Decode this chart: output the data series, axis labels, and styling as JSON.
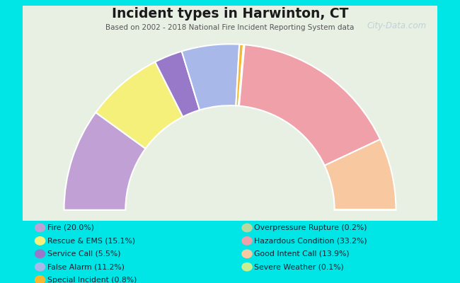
{
  "title": "Incident types in Harwinton, CT",
  "subtitle": "Based on 2002 - 2018 National Fire Incident Reporting System data",
  "background_outer": "#00e5e5",
  "background_inner_tl": "#ddeedd",
  "background_inner_br": "#f5f0f0",
  "watermark": "⌘ City-Data.com",
  "categories": [
    "Fire",
    "Rescue & EMS",
    "Service Call",
    "False Alarm",
    "Special Incident",
    "Overpressure Rupture",
    "Hazardous Condition",
    "Good Intent Call",
    "Severe Weather"
  ],
  "values": [
    20.0,
    15.1,
    5.5,
    11.2,
    0.8,
    0.2,
    33.2,
    13.9,
    0.1
  ],
  "colors": [
    "#c0a0d5",
    "#f5f07a",
    "#9878c8",
    "#a8b8e8",
    "#f5b830",
    "#b8d8a0",
    "#f0a0a8",
    "#f8c8a0",
    "#c8f090"
  ],
  "legend_labels": [
    "Fire (20.0%)",
    "Rescue & EMS (15.1%)",
    "Service Call (5.5%)",
    "False Alarm (11.2%)",
    "Special Incident (0.8%)",
    "Overpressure Rupture (0.2%)",
    "Hazardous Condition (33.2%)",
    "Good Intent Call (13.9%)",
    "Severe Weather (0.1%)"
  ],
  "figsize": [
    6.5,
    4.0
  ],
  "dpi": 100
}
